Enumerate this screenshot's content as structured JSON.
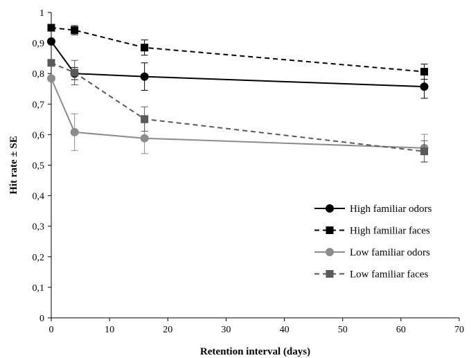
{
  "chart_data": {
    "type": "line",
    "title": "",
    "xlabel": "Retention interval (days)",
    "ylabel": "Hit rate ± SE",
    "xlim": [
      0,
      70
    ],
    "ylim": [
      0,
      1
    ],
    "x_ticks": [
      "0",
      "10",
      "20",
      "30",
      "40",
      "50",
      "60",
      "70"
    ],
    "y_ticks": [
      "0",
      "0,1",
      "0,2",
      "0,3",
      "0,4",
      "0,5",
      "0,6",
      "0,7",
      "0,8",
      "0,9",
      "1"
    ],
    "grid": false,
    "legend_position": "bottom-right",
    "x": [
      0,
      4,
      16,
      64
    ],
    "series": [
      {
        "name": "High familiar odors",
        "values": [
          0.905,
          0.8,
          0.79,
          0.757
        ],
        "errors": [
          0.0,
          0.02,
          0.045,
          0.038
        ],
        "color": "#000000",
        "dash": "solid",
        "marker": "circle"
      },
      {
        "name": "High familiar faces",
        "values": [
          0.95,
          0.942,
          0.885,
          0.806
        ],
        "errors": [
          0.0,
          0.015,
          0.025,
          0.025
        ],
        "color": "#000000",
        "dash": "dashed",
        "marker": "square"
      },
      {
        "name": "Low familiar odors",
        "values": [
          0.784,
          0.608,
          0.588,
          0.556
        ],
        "errors": [
          0.0,
          0.06,
          0.05,
          0.045
        ],
        "color": "#8c8c8c",
        "dash": "solid",
        "marker": "circle"
      },
      {
        "name": "Low familiar faces",
        "values": [
          0.835,
          0.803,
          0.651,
          0.545
        ],
        "errors": [
          0.0,
          0.04,
          0.04,
          0.035
        ],
        "color": "#595959",
        "dash": "dashed",
        "marker": "square"
      }
    ]
  }
}
